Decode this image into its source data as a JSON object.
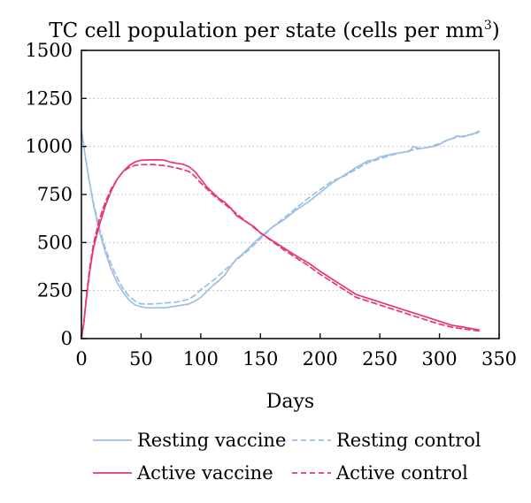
{
  "chart_data": {
    "type": "line",
    "title": "TC cell population per state (cells per mm",
    "title_superscript": "3",
    "title_suffix": ")",
    "xlabel": "Days",
    "ylabel": "",
    "xlim": [
      0,
      350
    ],
    "ylim": [
      0,
      1500
    ],
    "xticks": [
      0,
      50,
      100,
      150,
      200,
      250,
      300,
      350
    ],
    "yticks": [
      0,
      250,
      500,
      750,
      1000,
      1250,
      1500
    ],
    "grid": "horizontal-dotted",
    "legend_position": "bottom",
    "series": [
      {
        "name": "Resting vaccine",
        "color": "#9dbfe6",
        "dash": "solid",
        "x": [
          0,
          3,
          6,
          10,
          15,
          20,
          25,
          30,
          35,
          40,
          45,
          50,
          55,
          60,
          65,
          70,
          75,
          80,
          85,
          90,
          95,
          100,
          105,
          110,
          115,
          120,
          125,
          130,
          135,
          140,
          145,
          150,
          160,
          170,
          180,
          190,
          200,
          210,
          220,
          230,
          240,
          245,
          250,
          260,
          270,
          275,
          278,
          280,
          285,
          290,
          295,
          300,
          305,
          310,
          315,
          320,
          325,
          330,
          333
        ],
        "y": [
          1090,
          960,
          840,
          700,
          560,
          450,
          360,
          290,
          240,
          200,
          175,
          165,
          160,
          160,
          160,
          160,
          165,
          170,
          175,
          180,
          195,
          215,
          245,
          275,
          300,
          330,
          375,
          415,
          440,
          470,
          500,
          530,
          580,
          620,
          670,
          710,
          760,
          810,
          850,
          890,
          925,
          930,
          945,
          960,
          970,
          975,
          1000,
          995,
          990,
          995,
          1000,
          1010,
          1030,
          1040,
          1055,
          1050,
          1060,
          1070,
          1080
        ]
      },
      {
        "name": "Resting control",
        "color": "#9dbfe6",
        "dash": "dashed",
        "x": [
          0,
          3,
          6,
          10,
          15,
          20,
          25,
          30,
          35,
          40,
          45,
          50,
          60,
          70,
          80,
          90,
          95,
          100,
          110,
          120,
          130,
          140,
          150,
          160,
          170,
          180,
          190,
          200,
          210,
          220,
          230,
          240,
          250,
          260,
          270,
          280,
          290,
          300,
          310,
          320,
          330,
          333
        ],
        "y": [
          1080,
          960,
          840,
          710,
          580,
          470,
          385,
          315,
          260,
          220,
          195,
          180,
          180,
          185,
          190,
          205,
          225,
          255,
          300,
          355,
          410,
          460,
          520,
          580,
          630,
          680,
          730,
          775,
          820,
          845,
          880,
          915,
          935,
          955,
          970,
          985,
          995,
          1015,
          1040,
          1055,
          1065,
          1075
        ]
      },
      {
        "name": "Active vaccine",
        "color": "#e8357a",
        "dash": "solid",
        "x": [
          0,
          2,
          4,
          7,
          10,
          15,
          20,
          25,
          30,
          35,
          40,
          45,
          50,
          55,
          60,
          65,
          70,
          75,
          80,
          85,
          90,
          95,
          100,
          105,
          110,
          115,
          120,
          125,
          130,
          135,
          140,
          145,
          150,
          160,
          170,
          180,
          190,
          200,
          210,
          220,
          230,
          240,
          250,
          260,
          270,
          280,
          290,
          300,
          310,
          320,
          333
        ],
        "y": [
          0,
          80,
          200,
          350,
          470,
          590,
          690,
          770,
          830,
          870,
          900,
          920,
          928,
          930,
          930,
          930,
          928,
          918,
          912,
          908,
          895,
          870,
          830,
          790,
          760,
          730,
          710,
          680,
          640,
          620,
          600,
          580,
          550,
          510,
          470,
          430,
          395,
          350,
          310,
          270,
          230,
          210,
          190,
          170,
          150,
          130,
          110,
          90,
          70,
          60,
          45
        ]
      },
      {
        "name": "Active control",
        "color": "#e8357a",
        "dash": "dashed",
        "x": [
          0,
          2,
          4,
          7,
          10,
          15,
          20,
          25,
          30,
          35,
          40,
          45,
          50,
          60,
          70,
          80,
          90,
          95,
          100,
          110,
          120,
          130,
          140,
          150,
          160,
          170,
          180,
          190,
          200,
          210,
          220,
          230,
          240,
          250,
          260,
          270,
          280,
          290,
          300,
          310,
          320,
          333
        ],
        "y": [
          0,
          80,
          210,
          370,
          490,
          620,
          710,
          780,
          830,
          870,
          890,
          902,
          905,
          906,
          900,
          888,
          870,
          845,
          810,
          750,
          700,
          650,
          600,
          550,
          505,
          460,
          420,
          380,
          335,
          295,
          255,
          215,
          195,
          175,
          155,
          135,
          115,
          95,
          75,
          60,
          50,
          40
        ]
      }
    ]
  }
}
